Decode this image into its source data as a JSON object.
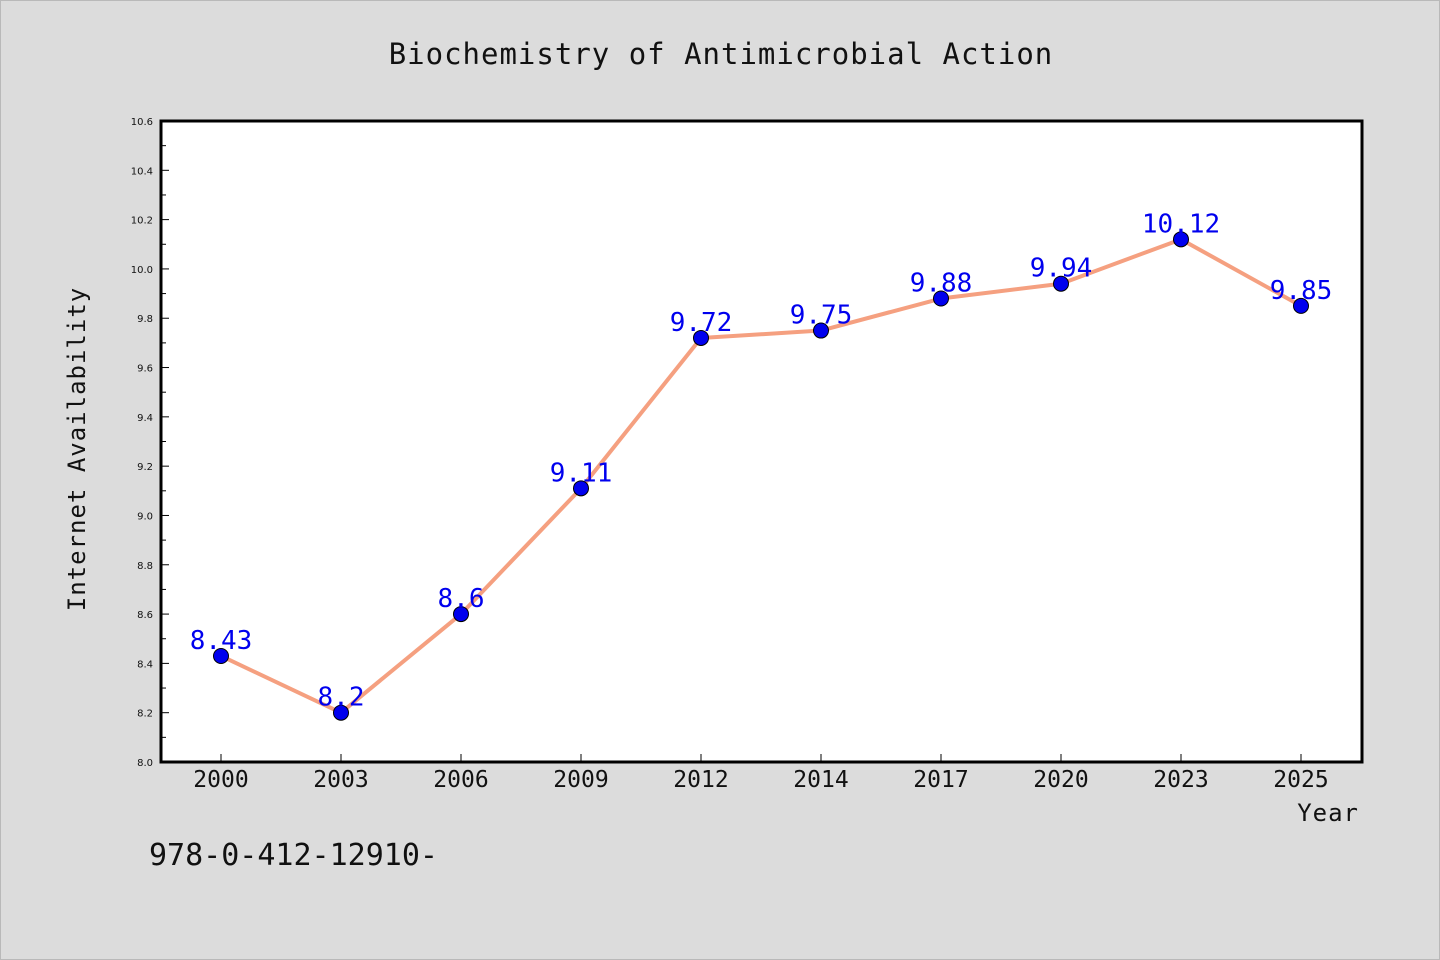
{
  "chart_data": {
    "type": "line",
    "title": "Biochemistry of Antimicrobial Action",
    "xlabel": "Year",
    "ylabel": "Internet Availability",
    "categories": [
      "2000",
      "2003",
      "2006",
      "2009",
      "2012",
      "2014",
      "2017",
      "2020",
      "2023",
      "2025"
    ],
    "series": [
      {
        "values": [
          8.43,
          8.2,
          8.6,
          9.11,
          9.72,
          9.75,
          9.88,
          9.94,
          10.12,
          9.85
        ],
        "data_labels": [
          "8.43",
          "8.2",
          "8.6",
          "9.11",
          "9.72",
          "9.75",
          "9.88",
          "9.94",
          "10.12",
          "9.85"
        ],
        "line_color": "#f5a080",
        "marker_color": "#0000ee"
      }
    ],
    "ylim": [
      8.0,
      10.6
    ],
    "y_ticks": [
      "8.0",
      "8.2",
      "8.4",
      "8.6",
      "8.8",
      "9.0",
      "9.2",
      "9.4",
      "9.6",
      "9.8",
      "10.0",
      "10.2",
      "10.4",
      "10.6"
    ],
    "grid": false,
    "legend": "none"
  },
  "footer": {
    "text": "978-0-412-12910-"
  },
  "colors": {
    "background": "#dcdcdc",
    "plot_background": "#ffffff",
    "line": "#f5a080",
    "marker": "#0000ee",
    "data_label": "#0000ee"
  }
}
